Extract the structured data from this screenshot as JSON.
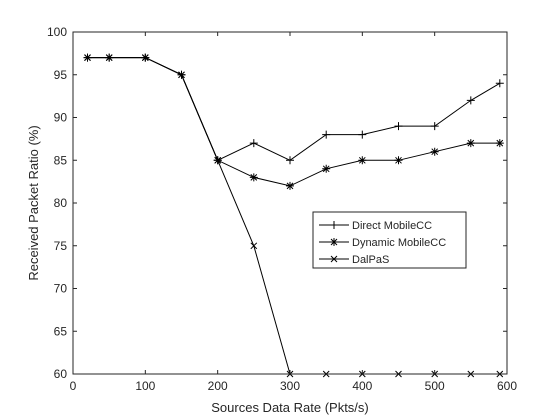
{
  "chart_data": {
    "type": "line",
    "title": "",
    "xlabel": "Sources Data Rate (Pkts/s)",
    "ylabel": "Received Packet Ratio (%)",
    "xlim": [
      0,
      600
    ],
    "ylim": [
      60,
      100
    ],
    "xticks": [
      0,
      100,
      200,
      300,
      400,
      500,
      600
    ],
    "yticks": [
      60,
      65,
      70,
      75,
      80,
      85,
      90,
      95,
      100
    ],
    "grid": false,
    "legend_position": "center-right",
    "series": [
      {
        "name": "Direct MobileCC",
        "marker": "plus",
        "color": "#000000",
        "x": [
          20,
          50,
          100,
          150,
          200,
          250,
          300,
          350,
          400,
          450,
          500,
          550,
          590
        ],
        "values": [
          97,
          97,
          97,
          95,
          85,
          87,
          85,
          88,
          88,
          89,
          89,
          92,
          94
        ]
      },
      {
        "name": "Dynamic MobileCC",
        "marker": "star",
        "color": "#000000",
        "x": [
          20,
          50,
          100,
          150,
          200,
          250,
          300,
          350,
          400,
          450,
          500,
          550,
          590
        ],
        "values": [
          97,
          97,
          97,
          95,
          85,
          83,
          82,
          84,
          85,
          85,
          86,
          87,
          87
        ]
      },
      {
        "name": "DalPaS",
        "marker": "x",
        "color": "#000000",
        "x": [
          20,
          50,
          100,
          150,
          200,
          250,
          300,
          350,
          400,
          450,
          500,
          550,
          590
        ],
        "values": [
          97,
          97,
          97,
          95,
          85,
          75,
          60,
          60,
          60,
          60,
          60,
          60,
          60
        ]
      }
    ]
  }
}
